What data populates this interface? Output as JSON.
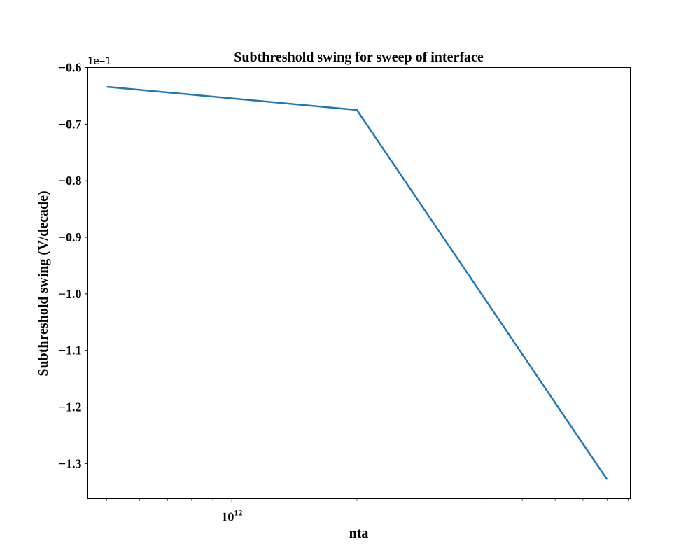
{
  "chart_data": {
    "type": "line",
    "title": "Subthreshold swing for sweep of interface",
    "xlabel": "nta",
    "ylabel": "Subthreshold swing (V/decade)",
    "x_scale": "log",
    "x_tick_labels": [
      {
        "value": 1000000000000.0,
        "base": "10",
        "exponent": "12"
      }
    ],
    "y_offset_label": "1e−1",
    "y_ticks": [
      {
        "value": -0.6,
        "label": "−0.6"
      },
      {
        "value": -0.7,
        "label": "−0.7"
      },
      {
        "value": -0.8,
        "label": "−0.8"
      },
      {
        "value": -0.9,
        "label": "−0.9"
      },
      {
        "value": -1.0,
        "label": "−1.0"
      },
      {
        "value": -1.1,
        "label": "−1.1"
      },
      {
        "value": -1.2,
        "label": "−1.2"
      },
      {
        "value": -1.3,
        "label": "−1.3"
      }
    ],
    "xlim": [
      450000000000.0,
      9100000000000.0
    ],
    "ylim": [
      -1.362,
      -0.6
    ],
    "grid": false,
    "series": [
      {
        "color": "#1f77b4",
        "x": [
          500000000000.0,
          2000000000000.0,
          8000000000000.0
        ],
        "y": [
          -0.634,
          -0.675,
          -1.328
        ]
      }
    ]
  }
}
